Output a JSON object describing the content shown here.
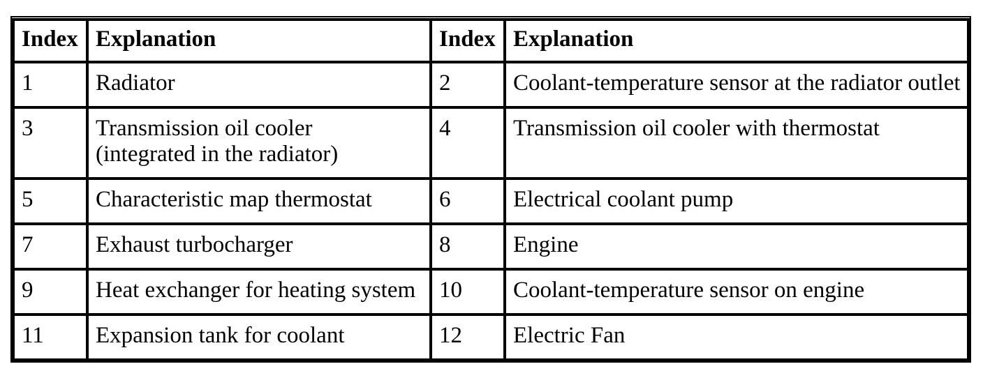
{
  "colors": {
    "border": "#000000",
    "text": "#000000",
    "background": "#ffffff"
  },
  "table": {
    "columns": [
      "Index",
      "Explanation",
      "Index",
      "Explanation"
    ],
    "rows": [
      {
        "index_left": "1",
        "explanation_left": "Radiator",
        "index_right": "2",
        "explanation_right": "Coolant-temperature sensor at the radiator outlet"
      },
      {
        "index_left": "3",
        "explanation_left": "Transmission oil cooler\n(integrated in the radiator)",
        "index_right": "4",
        "explanation_right": "Transmission oil cooler with thermostat"
      },
      {
        "index_left": "5",
        "explanation_left": "Characteristic map thermostat",
        "index_right": "6",
        "explanation_right": "Electrical coolant pump"
      },
      {
        "index_left": "7",
        "explanation_left": "Exhaust turbocharger",
        "index_right": "8",
        "explanation_right": "Engine"
      },
      {
        "index_left": "9",
        "explanation_left": "Heat exchanger for heating system",
        "index_right": "10",
        "explanation_right": "Coolant-temperature sensor on engine"
      },
      {
        "index_left": "11",
        "explanation_left": "Expansion tank for coolant",
        "index_right": "12",
        "explanation_right": "Electric Fan"
      }
    ]
  }
}
